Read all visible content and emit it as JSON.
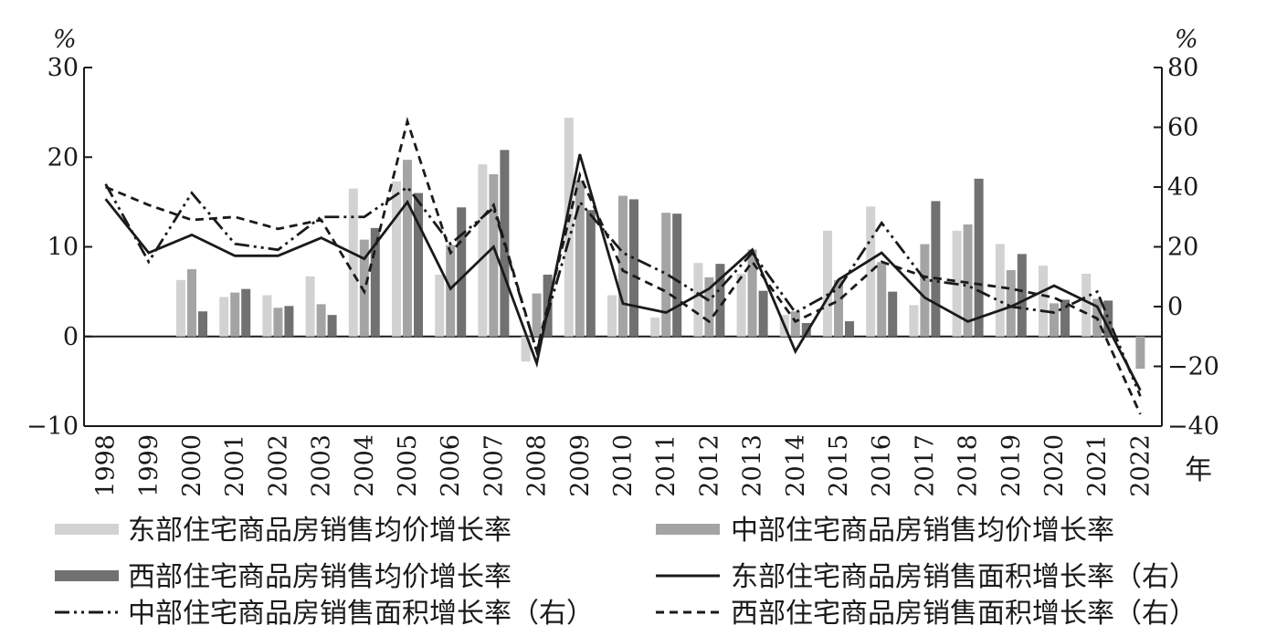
{
  "chart_data": {
    "type": "bar",
    "categories": [
      "1998",
      "1999",
      "2000",
      "2001",
      "2002",
      "2003",
      "2004",
      "2005",
      "2006",
      "2007",
      "2008",
      "2009",
      "2010",
      "2011",
      "2012",
      "2013",
      "2014",
      "2015",
      "2016",
      "2017",
      "2018",
      "2019",
      "2020",
      "2021",
      "2022"
    ],
    "x_unit": "年",
    "y_left": {
      "unit": "%",
      "ylim": [
        -10,
        30
      ],
      "ticks": [
        "−10",
        "0",
        "10",
        "20",
        "30"
      ],
      "tick_values": [
        -10,
        0,
        10,
        20,
        30
      ]
    },
    "y_right": {
      "unit": "%",
      "ylim": [
        -40,
        80
      ],
      "ticks": [
        "−40",
        "−20",
        "0",
        "20",
        "40",
        "60",
        "80"
      ],
      "tick_values": [
        -40,
        -20,
        0,
        20,
        40,
        60,
        80
      ]
    },
    "grid": false,
    "legend_position": "bottom",
    "series": [
      {
        "name": "东部住宅商品房销售均价增长率",
        "type": "bar",
        "axis": "left",
        "color": "#d2d2d2",
        "values": [
          null,
          null,
          6.3,
          4.4,
          4.6,
          6.7,
          16.5,
          17.3,
          6.9,
          19.2,
          -2.8,
          24.4,
          4.6,
          2.1,
          8.2,
          7.0,
          2.4,
          11.8,
          14.5,
          3.5,
          11.8,
          10.3,
          7.9,
          7.0,
          null
        ]
      },
      {
        "name": "中部住宅商品房销售均价增长率",
        "type": "bar",
        "axis": "left",
        "color": "#a4a4a4",
        "values": [
          null,
          null,
          7.5,
          4.9,
          3.2,
          3.6,
          10.8,
          19.7,
          10.2,
          18.1,
          4.8,
          17.4,
          15.7,
          13.8,
          6.6,
          9.7,
          2.8,
          6.3,
          8.3,
          10.3,
          12.5,
          7.4,
          3.7,
          4.2,
          -3.6
        ]
      },
      {
        "name": "西部住宅商品房销售均价增长率",
        "type": "bar",
        "axis": "left",
        "color": "#717171",
        "values": [
          null,
          null,
          2.8,
          5.3,
          3.4,
          2.4,
          12.1,
          16.0,
          14.4,
          20.8,
          6.9,
          14.1,
          15.3,
          13.7,
          8.1,
          5.1,
          1.5,
          1.7,
          5.0,
          15.1,
          17.6,
          9.2,
          4.1,
          4.0,
          null
        ]
      },
      {
        "name": "东部住宅商品房销售面积增长率（右）",
        "type": "line",
        "axis": "right",
        "dash": "solid",
        "values": [
          36,
          18,
          24,
          17,
          17,
          23,
          16,
          35,
          6,
          20,
          -19,
          51,
          1,
          -2,
          6,
          19,
          -15,
          9,
          18,
          3,
          -5,
          0,
          7,
          0,
          -28
        ]
      },
      {
        "name": "中部住宅商品房销售面积增长率（右）",
        "type": "line",
        "axis": "right",
        "dash": "dashdot",
        "values": [
          41,
          15,
          38,
          21,
          19,
          30,
          30,
          40,
          21,
          33,
          -15,
          35,
          18,
          11,
          2,
          18,
          -2,
          6,
          28,
          9,
          7,
          0,
          -2,
          5,
          -30
        ]
      },
      {
        "name": "西部住宅商品房销售面积增长率（右）",
        "type": "line",
        "axis": "right",
        "dash": "dashed",
        "values": [
          40,
          34,
          29,
          30,
          26,
          29,
          5,
          62,
          18,
          34,
          -15,
          44,
          12,
          5,
          -5,
          15,
          -5,
          2,
          15,
          10,
          8,
          6,
          3,
          -4,
          -36
        ]
      }
    ]
  }
}
